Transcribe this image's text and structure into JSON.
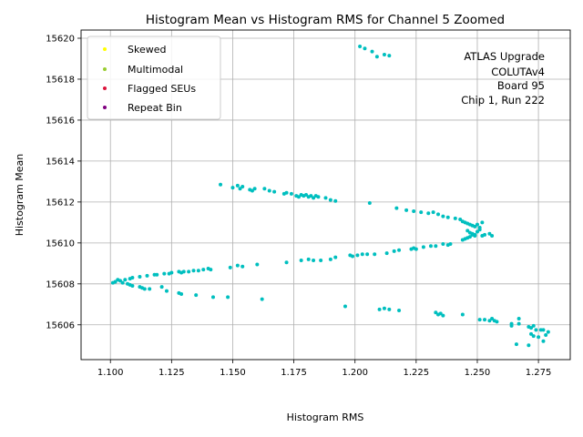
{
  "chart_data": {
    "type": "scatter",
    "title": "Histogram Mean vs Histogram RMS for Channel 5 Zoomed",
    "xlabel": "Histogram RMS",
    "ylabel": "Histogram Mean",
    "xlim": [
      1.088,
      1.288
    ],
    "ylim": [
      15604.3,
      15620.4
    ],
    "xticks": [
      1.1,
      1.125,
      1.15,
      1.175,
      1.2,
      1.225,
      1.25,
      1.275
    ],
    "xtick_labels": [
      "1.100",
      "1.125",
      "1.150",
      "1.175",
      "1.200",
      "1.225",
      "1.250",
      "1.275"
    ],
    "yticks": [
      15606,
      15608,
      15610,
      15612,
      15614,
      15616,
      15618,
      15620
    ],
    "ytick_labels": [
      "15606",
      "15608",
      "15610",
      "15612",
      "15614",
      "15616",
      "15618",
      "15620"
    ],
    "grid": true,
    "legend_position": "top-left",
    "legend": [
      {
        "label": "Skewed",
        "color": "#ffff00"
      },
      {
        "label": "Multimodal",
        "color": "#9acd32"
      },
      {
        "label": "Flagged SEUs",
        "color": "#dc143c"
      },
      {
        "label": "Repeat Bin",
        "color": "#800080"
      }
    ],
    "annotation": [
      "ATLAS Upgrade",
      "COLUTAv4",
      "Board 95",
      "Chip 1, Run 222"
    ],
    "series": [
      {
        "color": "#00bfbf",
        "points": [
          [
            1.202,
            15619.6
          ],
          [
            1.204,
            15619.5
          ],
          [
            1.207,
            15619.35
          ],
          [
            1.209,
            15619.1
          ],
          [
            1.212,
            15619.2
          ],
          [
            1.214,
            15619.15
          ],
          [
            1.145,
            15612.85
          ],
          [
            1.15,
            15612.7
          ],
          [
            1.152,
            15612.8
          ],
          [
            1.153,
            15612.65
          ],
          [
            1.154,
            15612.75
          ],
          [
            1.157,
            15612.6
          ],
          [
            1.158,
            15612.55
          ],
          [
            1.159,
            15612.65
          ],
          [
            1.163,
            15612.65
          ],
          [
            1.165,
            15612.55
          ],
          [
            1.167,
            15612.5
          ],
          [
            1.171,
            15612.4
          ],
          [
            1.172,
            15612.45
          ],
          [
            1.174,
            15612.4
          ],
          [
            1.176,
            15612.3
          ],
          [
            1.177,
            15612.25
          ],
          [
            1.178,
            15612.35
          ],
          [
            1.179,
            15612.3
          ],
          [
            1.18,
            15612.35
          ],
          [
            1.181,
            15612.25
          ],
          [
            1.182,
            15612.3
          ],
          [
            1.183,
            15612.2
          ],
          [
            1.184,
            15612.3
          ],
          [
            1.185,
            15612.25
          ],
          [
            1.188,
            15612.2
          ],
          [
            1.19,
            15612.1
          ],
          [
            1.192,
            15612.05
          ],
          [
            1.206,
            15611.95
          ],
          [
            1.217,
            15611.7
          ],
          [
            1.221,
            15611.6
          ],
          [
            1.224,
            15611.55
          ],
          [
            1.227,
            15611.5
          ],
          [
            1.23,
            15611.45
          ],
          [
            1.232,
            15611.5
          ],
          [
            1.234,
            15611.4
          ],
          [
            1.236,
            15611.3
          ],
          [
            1.238,
            15611.25
          ],
          [
            1.241,
            15611.2
          ],
          [
            1.243,
            15611.15
          ],
          [
            1.244,
            15611.05
          ],
          [
            1.245,
            15611.0
          ],
          [
            1.246,
            15610.95
          ],
          [
            1.247,
            15610.9
          ],
          [
            1.248,
            15610.85
          ],
          [
            1.249,
            15610.8
          ],
          [
            1.25,
            15610.9
          ],
          [
            1.251,
            15610.75
          ],
          [
            1.252,
            15611.0
          ],
          [
            1.246,
            15610.6
          ],
          [
            1.247,
            15610.5
          ],
          [
            1.248,
            15610.45
          ],
          [
            1.249,
            15610.4
          ],
          [
            1.25,
            15610.55
          ],
          [
            1.251,
            15610.65
          ],
          [
            1.252,
            15610.35
          ],
          [
            1.253,
            15610.4
          ],
          [
            1.255,
            15610.45
          ],
          [
            1.256,
            15610.35
          ],
          [
            1.244,
            15610.15
          ],
          [
            1.245,
            15610.2
          ],
          [
            1.246,
            15610.25
          ],
          [
            1.247,
            15610.3
          ],
          [
            1.248,
            15610.4
          ],
          [
            1.249,
            15610.35
          ],
          [
            1.236,
            15609.95
          ],
          [
            1.238,
            15609.9
          ],
          [
            1.239,
            15609.95
          ],
          [
            1.231,
            15609.85
          ],
          [
            1.233,
            15609.85
          ],
          [
            1.228,
            15609.8
          ],
          [
            1.224,
            15609.75
          ],
          [
            1.225,
            15609.7
          ],
          [
            1.223,
            15609.7
          ],
          [
            1.218,
            15609.65
          ],
          [
            1.216,
            15609.6
          ],
          [
            1.213,
            15609.5
          ],
          [
            1.208,
            15609.45
          ],
          [
            1.205,
            15609.45
          ],
          [
            1.203,
            15609.45
          ],
          [
            1.201,
            15609.4
          ],
          [
            1.199,
            15609.35
          ],
          [
            1.198,
            15609.4
          ],
          [
            1.192,
            15609.3
          ],
          [
            1.19,
            15609.2
          ],
          [
            1.186,
            15609.15
          ],
          [
            1.183,
            15609.15
          ],
          [
            1.181,
            15609.2
          ],
          [
            1.178,
            15609.15
          ],
          [
            1.172,
            15609.05
          ],
          [
            1.16,
            15608.95
          ],
          [
            1.154,
            15608.85
          ],
          [
            1.152,
            15608.9
          ],
          [
            1.149,
            15608.8
          ],
          [
            1.141,
            15608.7
          ],
          [
            1.14,
            15608.75
          ],
          [
            1.138,
            15608.7
          ],
          [
            1.136,
            15608.65
          ],
          [
            1.134,
            15608.65
          ],
          [
            1.132,
            15608.6
          ],
          [
            1.13,
            15608.6
          ],
          [
            1.129,
            15608.55
          ],
          [
            1.128,
            15608.6
          ],
          [
            1.125,
            15608.55
          ],
          [
            1.124,
            15608.5
          ],
          [
            1.122,
            15608.5
          ],
          [
            1.119,
            15608.45
          ],
          [
            1.118,
            15608.45
          ],
          [
            1.115,
            15608.4
          ],
          [
            1.112,
            15608.35
          ],
          [
            1.109,
            15608.3
          ],
          [
            1.108,
            15608.25
          ],
          [
            1.106,
            15608.2
          ],
          [
            1.104,
            15608.15
          ],
          [
            1.103,
            15608.2
          ],
          [
            1.102,
            15608.1
          ],
          [
            1.101,
            15608.05
          ],
          [
            1.105,
            15608.05
          ],
          [
            1.107,
            15608.0
          ],
          [
            1.108,
            15607.95
          ],
          [
            1.109,
            15607.9
          ],
          [
            1.112,
            15607.85
          ],
          [
            1.113,
            15607.8
          ],
          [
            1.114,
            15607.75
          ],
          [
            1.116,
            15607.75
          ],
          [
            1.121,
            15607.85
          ],
          [
            1.123,
            15607.65
          ],
          [
            1.128,
            15607.55
          ],
          [
            1.129,
            15607.5
          ],
          [
            1.135,
            15607.45
          ],
          [
            1.142,
            15607.35
          ],
          [
            1.148,
            15607.35
          ],
          [
            1.162,
            15607.25
          ],
          [
            1.196,
            15606.9
          ],
          [
            1.21,
            15606.75
          ],
          [
            1.212,
            15606.8
          ],
          [
            1.214,
            15606.75
          ],
          [
            1.218,
            15606.7
          ],
          [
            1.233,
            15606.6
          ],
          [
            1.234,
            15606.5
          ],
          [
            1.235,
            15606.55
          ],
          [
            1.236,
            15606.45
          ],
          [
            1.244,
            15606.5
          ],
          [
            1.251,
            15606.25
          ],
          [
            1.253,
            15606.25
          ],
          [
            1.255,
            15606.2
          ],
          [
            1.256,
            15606.3
          ],
          [
            1.257,
            15606.2
          ],
          [
            1.258,
            15606.15
          ],
          [
            1.264,
            15606.05
          ],
          [
            1.264,
            15605.95
          ],
          [
            1.267,
            15606.3
          ],
          [
            1.267,
            15606.05
          ],
          [
            1.271,
            15605.9
          ],
          [
            1.272,
            15605.85
          ],
          [
            1.273,
            15605.95
          ],
          [
            1.274,
            15605.75
          ],
          [
            1.276,
            15605.75
          ],
          [
            1.277,
            15605.75
          ],
          [
            1.279,
            15605.65
          ],
          [
            1.272,
            15605.55
          ],
          [
            1.273,
            15605.45
          ],
          [
            1.275,
            15605.4
          ],
          [
            1.278,
            15605.5
          ],
          [
            1.277,
            15605.2
          ],
          [
            1.266,
            15605.05
          ],
          [
            1.271,
            15605.0
          ]
        ]
      }
    ]
  }
}
